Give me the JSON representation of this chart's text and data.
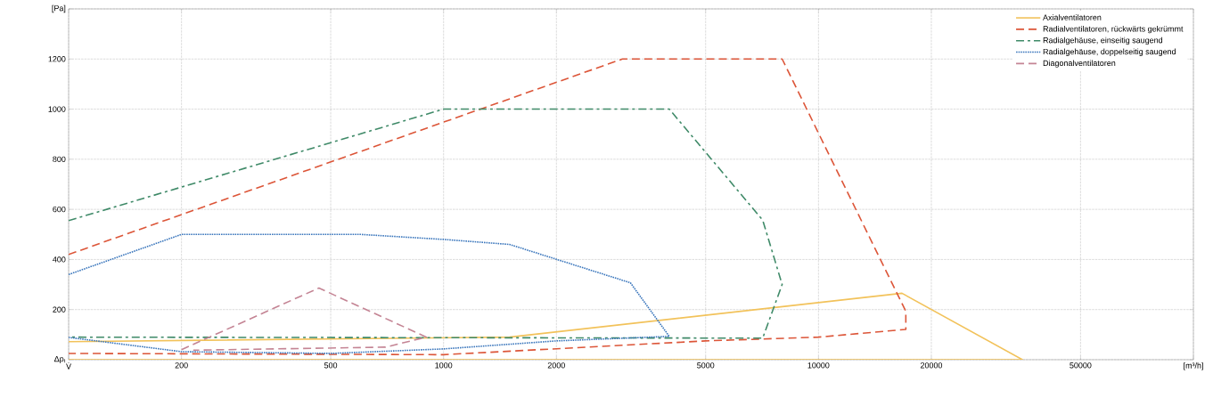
{
  "chart_data": {
    "type": "line",
    "series": [
      {
        "name": "Axialventilatoren",
        "color": "#f2c25a",
        "line_style": "solid",
        "x": [
          100,
          1500,
          16700,
          35000,
          100
        ],
        "values": [
          72,
          90,
          265,
          0,
          0
        ]
      },
      {
        "name": "Radialventilatoren, rückwärts gekrümmt",
        "color": "#dc5538",
        "line_style": "dashed",
        "x": [
          100,
          3000,
          8000,
          17100,
          17100,
          10000,
          5000,
          1000,
          100
        ],
        "values": [
          420,
          1200,
          1200,
          193,
          121,
          90,
          75,
          20,
          25
        ]
      },
      {
        "name": "Radialgehäuse, einseitig saugend",
        "color": "#3f8a68",
        "line_style": "dashdot",
        "x": [
          100,
          1000,
          4000,
          7100,
          8000,
          7100,
          100
        ],
        "values": [
          555,
          1000,
          1000,
          557,
          300,
          86,
          90
        ]
      },
      {
        "name": "Radialgehäuse, doppelseitig saugend",
        "color": "#3a76bc",
        "line_style": "dotted",
        "x": [
          100,
          200,
          600,
          1000,
          1500,
          3150,
          4000,
          2000,
          1000,
          500,
          200,
          100
        ],
        "values": [
          340,
          500,
          500,
          480,
          460,
          307,
          93,
          75,
          43,
          25,
          32,
          89
        ]
      },
      {
        "name": "Diagonalventilatoren",
        "color": "#c48494",
        "line_style": "dashed",
        "x": [
          200,
          465,
          900,
          700,
          215
        ],
        "values": [
          40,
          286,
          90,
          50,
          38
        ]
      }
    ],
    "log": "x",
    "xlim": [
      100,
      100000
    ],
    "ylim": [
      0,
      1400
    ],
    "xticks": [
      {
        "value": 100,
        "label": "V̇"
      },
      200,
      500,
      1000,
      2000,
      5000,
      10000,
      20000,
      50000,
      {
        "value": 100000,
        "label": "[m³/h]"
      }
    ],
    "yticks": [
      {
        "value": 0,
        "label": "Δp$_{t}$"
      },
      200,
      400,
      600,
      800,
      1000,
      1200,
      {
        "value": 1400,
        "label": "[Pa]"
      }
    ],
    "grid": true,
    "legend": "top right"
  }
}
